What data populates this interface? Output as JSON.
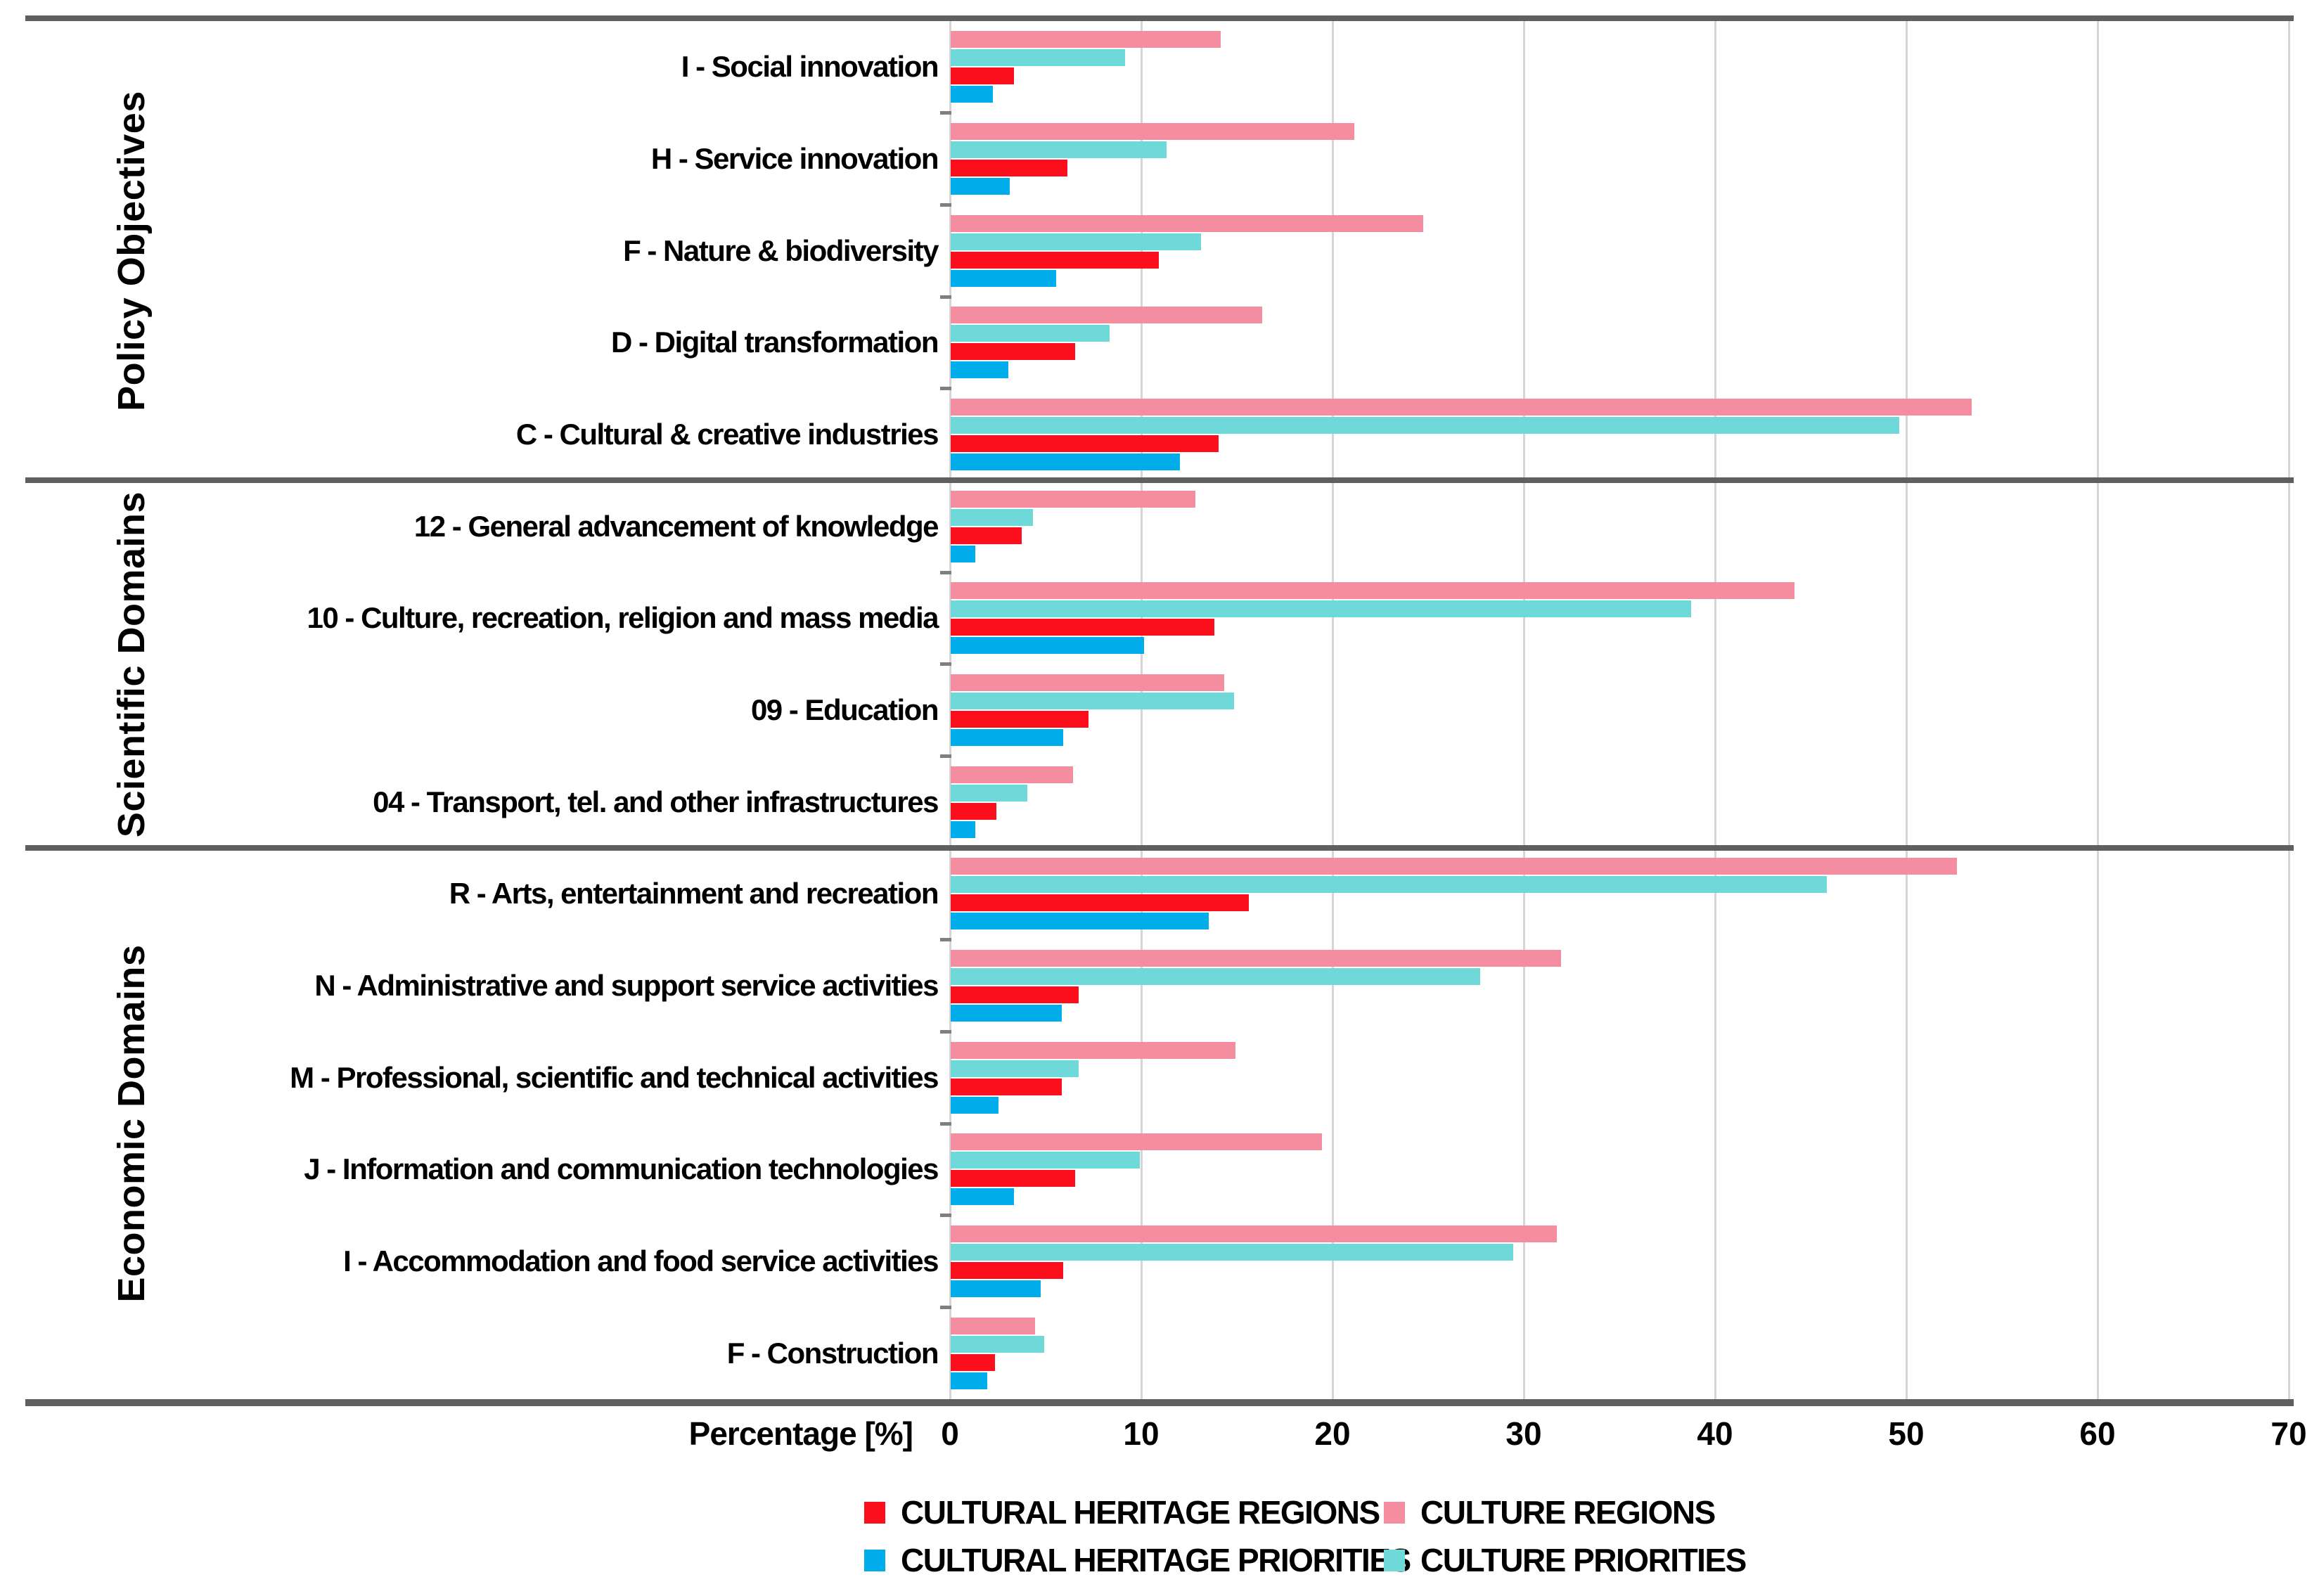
{
  "chart_data": {
    "type": "bar",
    "orientation": "horizontal",
    "title": "",
    "xlabel": "Percentage [%]",
    "xlim": [
      0,
      70
    ],
    "xticks": [
      "0",
      "10",
      "20",
      "30",
      "40",
      "50",
      "60",
      "70"
    ],
    "grid": true,
    "grid_color": "#D5D5D5",
    "frame_color": "#5F5F5F",
    "series": [
      {
        "key": "culture-regions",
        "name": "CULTURE REGIONS",
        "color": "#F58DA0"
      },
      {
        "key": "culture-priorities",
        "name": "CULTURE PRIORITIES",
        "color": "#6FD8D9"
      },
      {
        "key": "cultural-heritage-regions",
        "name": "CULTURAL HERITAGE REGIONS",
        "color": "#FB0F1C"
      },
      {
        "key": "cultural-heritage-priorities",
        "name": "CULTURAL HERITAGE PRIORITIES",
        "color": "#00ACEA"
      }
    ],
    "groups": [
      {
        "name": "Policy Objectives",
        "categories": [
          {
            "label": "I - Social innovation",
            "values": [
              14.1,
              9.1,
              3.3,
              2.2
            ]
          },
          {
            "label": "H - Service innovation",
            "values": [
              21.1,
              11.3,
              6.1,
              3.1
            ]
          },
          {
            "label": "F - Nature & biodiversity",
            "values": [
              24.7,
              13.1,
              10.9,
              5.5
            ]
          },
          {
            "label": "D - Digital transformation",
            "values": [
              16.3,
              8.3,
              6.5,
              3.0
            ]
          },
          {
            "label": "C - Cultural & creative industries",
            "values": [
              53.4,
              49.6,
              14.0,
              12.0
            ]
          }
        ]
      },
      {
        "name": "Scientific Domains",
        "categories": [
          {
            "label": "12 - General advancement of knowledge",
            "values": [
              12.8,
              4.3,
              3.7,
              1.3
            ]
          },
          {
            "label": "10 - Culture, recreation, religion and mass media",
            "values": [
              44.1,
              38.7,
              13.8,
              10.1
            ]
          },
          {
            "label": "09 - Education",
            "values": [
              14.3,
              14.8,
              7.2,
              5.9
            ]
          },
          {
            "label": "04 - Transport, tel. and other infrastructures",
            "values": [
              6.4,
              4.0,
              2.4,
              1.3
            ]
          }
        ]
      },
      {
        "name": "Economic Domains",
        "categories": [
          {
            "label": "R - Arts, entertainment and recreation",
            "values": [
              52.6,
              45.8,
              15.6,
              13.5
            ]
          },
          {
            "label": "N - Administrative and support service activities",
            "values": [
              31.9,
              27.7,
              6.7,
              5.8
            ]
          },
          {
            "label": "M - Professional, scientific and technical activities",
            "values": [
              14.9,
              6.7,
              5.8,
              2.5
            ]
          },
          {
            "label": "J - Information and communication technologies",
            "values": [
              19.4,
              9.9,
              6.5,
              3.3
            ]
          },
          {
            "label": "I - Accommodation and food service activities",
            "values": [
              31.7,
              29.4,
              5.9,
              4.7
            ]
          },
          {
            "label": "F - Construction",
            "values": [
              4.4,
              4.9,
              2.3,
              1.9
            ]
          }
        ]
      }
    ],
    "legend": {
      "position": "bottom",
      "items": [
        {
          "label": "CULTURAL HERITAGE REGIONS",
          "color": "#FB0F1C"
        },
        {
          "label": "CULTURE REGIONS",
          "color": "#F58DA0"
        },
        {
          "label": "CULTURAL HERITAGE PRIORITIES",
          "color": "#00ACEA"
        },
        {
          "label": "CULTURE PRIORITIES",
          "color": "#6FD8D9"
        }
      ]
    }
  }
}
